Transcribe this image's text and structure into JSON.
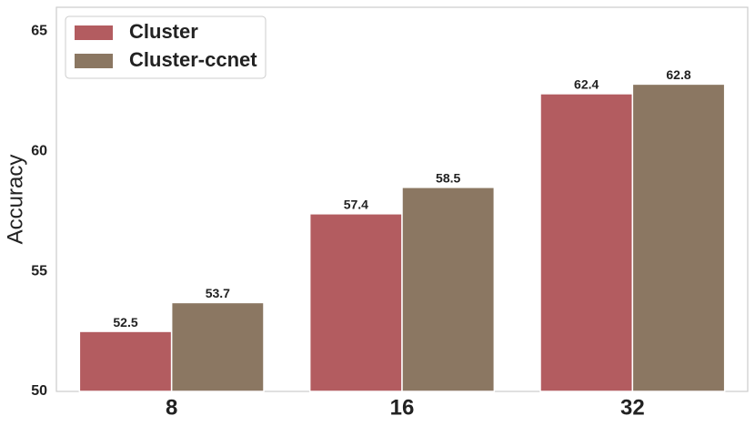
{
  "chart_data": {
    "type": "bar",
    "y_label": "Accuracy",
    "categories": [
      "8",
      "16",
      "32"
    ],
    "series": [
      {
        "name": "Cluster",
        "color": "#b35c60",
        "values": [
          52.5,
          57.4,
          62.4
        ]
      },
      {
        "name": "Cluster-ccnet",
        "color": "#8b7762",
        "values": [
          53.7,
          58.5,
          62.8
        ]
      }
    ],
    "ylim": [
      50,
      66
    ],
    "yticks": [
      50,
      55,
      60,
      65
    ],
    "grid": false,
    "legend": "upper-left"
  }
}
